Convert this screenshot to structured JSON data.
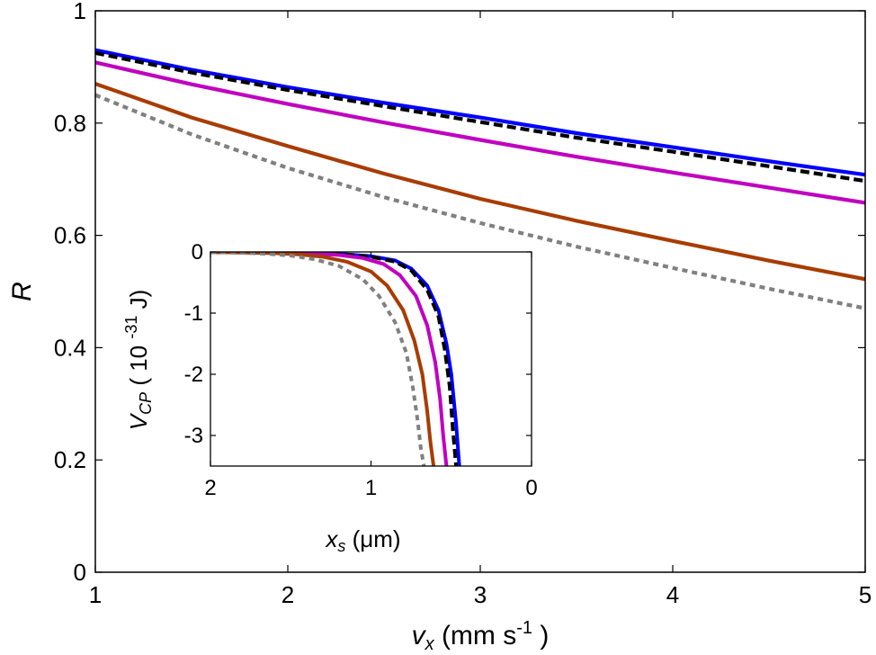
{
  "chart_data": [
    {
      "type": "line",
      "xlabel": "v_x (mm s^-1)",
      "ylabel": "R",
      "xlabel_parts": {
        "main": "v",
        "sub": "x",
        "unit_open": " (mm s",
        "sup": "-1",
        "unit_close": " )"
      },
      "ylabel_parts": {
        "main": "R"
      },
      "xlim": [
        1,
        5
      ],
      "ylim": [
        0,
        1
      ],
      "xticks": [
        "1",
        "2",
        "3",
        "4",
        "5"
      ],
      "yticks": [
        "0",
        "0.2",
        "0.4",
        "0.6",
        "0.8",
        "1"
      ],
      "grid": false,
      "series": [
        {
          "color": "#0000ff",
          "dash": "solid",
          "x": [
            1,
            1.5,
            2,
            2.5,
            3,
            3.5,
            4,
            4.5,
            5
          ],
          "y": [
            0.93,
            0.895,
            0.864,
            0.836,
            0.81,
            0.782,
            0.757,
            0.732,
            0.708
          ]
        },
        {
          "color": "#000000",
          "dash": "dashed",
          "x": [
            1,
            1.5,
            2,
            2.5,
            3,
            3.5,
            4,
            4.5,
            5
          ],
          "y": [
            0.925,
            0.89,
            0.859,
            0.83,
            0.802,
            0.774,
            0.749,
            0.723,
            0.697
          ]
        },
        {
          "color": "#c000c0",
          "dash": "solid",
          "x": [
            1,
            1.5,
            2,
            2.5,
            3,
            3.5,
            4,
            4.5,
            5
          ],
          "y": [
            0.908,
            0.869,
            0.834,
            0.801,
            0.77,
            0.74,
            0.712,
            0.685,
            0.658
          ]
        },
        {
          "color": "#a83c00",
          "dash": "solid",
          "x": [
            1,
            1.5,
            2,
            2.5,
            3,
            3.5,
            4,
            4.5,
            5
          ],
          "y": [
            0.87,
            0.81,
            0.759,
            0.71,
            0.665,
            0.626,
            0.59,
            0.555,
            0.522
          ]
        },
        {
          "color": "#808080",
          "dash": "dotted",
          "x": [
            1,
            1.5,
            2,
            2.5,
            3,
            3.5,
            4,
            4.5,
            5
          ],
          "y": [
            0.85,
            0.78,
            0.72,
            0.668,
            0.622,
            0.58,
            0.542,
            0.505,
            0.47
          ]
        }
      ]
    },
    {
      "type": "line",
      "inset": true,
      "xlabel": "x_s (μm)",
      "ylabel": "V_CP ( 10^-31 J)",
      "xlabel_parts": {
        "main": "x",
        "sub": "s",
        "unit": " (μm)"
      },
      "ylabel_parts": {
        "main": "V",
        "sub": "CP",
        "unit_open": " ( 10 ",
        "sup": "-31",
        "unit_close": " J)"
      },
      "xlim": [
        2,
        0
      ],
      "ylim": [
        -3.5,
        0
      ],
      "xticks": [
        "2",
        "1",
        "0"
      ],
      "yticks": [
        "0",
        "-1",
        "-2",
        "-3"
      ],
      "grid": false,
      "series": [
        {
          "color": "#0000ff",
          "dash": "solid",
          "x": [
            2.0,
            1.8,
            1.6,
            1.4,
            1.2,
            1.0,
            0.85,
            0.75,
            0.65,
            0.58,
            0.53,
            0.5,
            0.47,
            0.45
          ],
          "y": [
            -0.002,
            -0.004,
            -0.007,
            -0.014,
            -0.03,
            -0.07,
            -0.14,
            -0.27,
            -0.55,
            -0.95,
            -1.5,
            -2.0,
            -2.8,
            -3.5
          ]
        },
        {
          "color": "#000000",
          "dash": "dashed",
          "x": [
            2.0,
            1.8,
            1.6,
            1.4,
            1.2,
            1.0,
            0.85,
            0.75,
            0.65,
            0.58,
            0.54,
            0.51,
            0.49,
            0.47
          ],
          "y": [
            -0.002,
            -0.004,
            -0.008,
            -0.016,
            -0.034,
            -0.08,
            -0.16,
            -0.3,
            -0.62,
            -1.05,
            -1.6,
            -2.2,
            -2.9,
            -3.5
          ]
        },
        {
          "color": "#c000c0",
          "dash": "solid",
          "x": [
            2.0,
            1.8,
            1.6,
            1.4,
            1.2,
            1.05,
            0.92,
            0.82,
            0.72,
            0.65,
            0.6,
            0.57,
            0.55,
            0.53
          ],
          "y": [
            -0.003,
            -0.006,
            -0.012,
            -0.025,
            -0.05,
            -0.1,
            -0.2,
            -0.38,
            -0.72,
            -1.2,
            -1.8,
            -2.4,
            -3.0,
            -3.5
          ]
        },
        {
          "color": "#a83c00",
          "dash": "solid",
          "x": [
            2.0,
            1.8,
            1.6,
            1.45,
            1.3,
            1.15,
            1.0,
            0.9,
            0.8,
            0.73,
            0.68,
            0.65,
            0.63,
            0.61
          ],
          "y": [
            -0.004,
            -0.01,
            -0.02,
            -0.04,
            -0.08,
            -0.16,
            -0.32,
            -0.55,
            -0.95,
            -1.45,
            -2.0,
            -2.6,
            -3.1,
            -3.5
          ]
        },
        {
          "color": "#808080",
          "dash": "dotted",
          "x": [
            2.0,
            1.8,
            1.65,
            1.5,
            1.35,
            1.2,
            1.05,
            0.95,
            0.85,
            0.78,
            0.74,
            0.71,
            0.69,
            0.67
          ],
          "y": [
            -0.006,
            -0.015,
            -0.03,
            -0.06,
            -0.12,
            -0.23,
            -0.45,
            -0.72,
            -1.15,
            -1.65,
            -2.2,
            -2.75,
            -3.2,
            -3.5
          ]
        }
      ]
    }
  ]
}
